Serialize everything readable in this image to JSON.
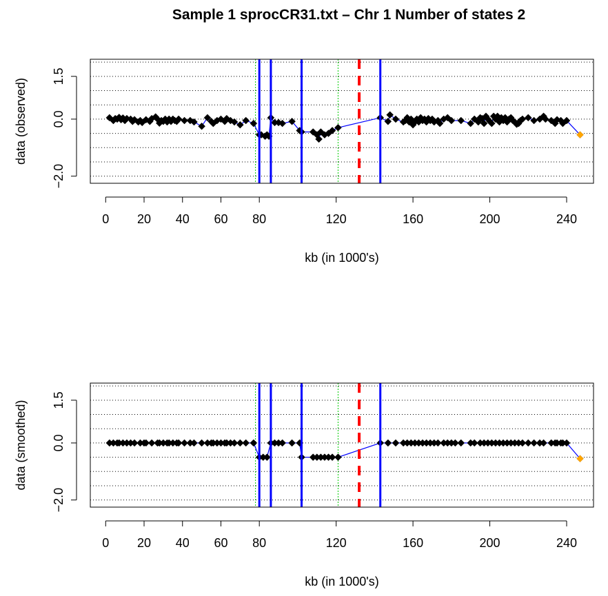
{
  "title": "Sample 1 sprocCR31.txt – Chr 1 Number of states 2",
  "colors": {
    "points": "#000000",
    "line": "#0000ff",
    "breaks": "#0000ff",
    "red_dashed": "#ff0000",
    "green_dotted": "#00cc00",
    "last_point": "#ffa500",
    "grid": "#000000"
  },
  "chart_data": [
    {
      "type": "line",
      "xlabel": "kb (in 1000's)",
      "ylabel": "data (observed)",
      "xlim": [
        -8,
        254
      ],
      "ylim": [
        -2.25,
        2.1
      ],
      "xticks": [
        0,
        20,
        40,
        60,
        80,
        120,
        160,
        200,
        240
      ],
      "yticks": [
        -2.0,
        0.0,
        1.5
      ],
      "ytick_labels": [
        "−2.0",
        "0.0",
        "1.5"
      ],
      "grid_y": [
        -2.0,
        -1.5,
        -1.0,
        -0.5,
        0.0,
        0.5,
        1.0,
        1.5,
        2.0
      ],
      "blue_vlines": [
        80,
        86,
        102,
        143
      ],
      "green_vlines": [
        78,
        121
      ],
      "red_vline": 132,
      "points": [
        [
          2,
          0.05
        ],
        [
          4,
          -0.05
        ],
        [
          5,
          0.02
        ],
        [
          6,
          0.0
        ],
        [
          7,
          0.06
        ],
        [
          8,
          -0.02
        ],
        [
          9,
          0.04
        ],
        [
          10,
          -0.05
        ],
        [
          11,
          0.02
        ],
        [
          13,
          0.0
        ],
        [
          14,
          -0.08
        ],
        [
          15,
          -0.02
        ],
        [
          17,
          -0.1
        ],
        [
          18,
          -0.05
        ],
        [
          19,
          -0.12
        ],
        [
          21,
          -0.02
        ],
        [
          23,
          -0.08
        ],
        [
          24,
          0.02
        ],
        [
          26,
          0.08
        ],
        [
          27,
          0.0
        ],
        [
          28,
          -0.14
        ],
        [
          29,
          -0.05
        ],
        [
          30,
          -0.08
        ],
        [
          31,
          0.0
        ],
        [
          32,
          -0.1
        ],
        [
          33,
          0.0
        ],
        [
          34,
          -0.08
        ],
        [
          35,
          0.0
        ],
        [
          36,
          -0.05
        ],
        [
          37,
          -0.08
        ],
        [
          38,
          0.0
        ],
        [
          41,
          -0.05
        ],
        [
          44,
          -0.05
        ],
        [
          46,
          -0.1
        ],
        [
          50,
          -0.25
        ],
        [
          53,
          0.05
        ],
        [
          55,
          -0.08
        ],
        [
          56,
          -0.15
        ],
        [
          58,
          -0.05
        ],
        [
          60,
          0.0
        ],
        [
          62,
          -0.08
        ],
        [
          63,
          0.02
        ],
        [
          65,
          -0.05
        ],
        [
          67,
          -0.1
        ],
        [
          70,
          -0.2
        ],
        [
          73,
          -0.05
        ],
        [
          77,
          -0.15
        ],
        [
          80,
          -0.55
        ],
        [
          81,
          -0.55
        ],
        [
          83,
          -0.6
        ],
        [
          84,
          -0.55
        ],
        [
          85,
          -0.6
        ],
        [
          86,
          0.05
        ],
        [
          88,
          -0.12
        ],
        [
          90,
          -0.12
        ],
        [
          92,
          -0.15
        ],
        [
          97,
          -0.08
        ],
        [
          101,
          -0.4
        ],
        [
          102,
          -0.45
        ],
        [
          108,
          -0.45
        ],
        [
          110,
          -0.55
        ],
        [
          111,
          -0.7
        ],
        [
          112,
          -0.45
        ],
        [
          114,
          -0.55
        ],
        [
          116,
          -0.5
        ],
        [
          118,
          -0.4
        ],
        [
          121,
          -0.3
        ],
        [
          143,
          0.05
        ],
        [
          147,
          -0.08
        ],
        [
          148,
          0.15
        ],
        [
          151,
          0.0
        ],
        [
          155,
          -0.1
        ],
        [
          156,
          -0.05
        ],
        [
          157,
          0.05
        ],
        [
          158,
          -0.1
        ],
        [
          159,
          0.0
        ],
        [
          160,
          -0.2
        ],
        [
          161,
          -0.1
        ],
        [
          162,
          0.0
        ],
        [
          163,
          -0.1
        ],
        [
          164,
          0.05
        ],
        [
          165,
          -0.05
        ],
        [
          166,
          0.0
        ],
        [
          167,
          -0.1
        ],
        [
          168,
          0.02
        ],
        [
          169,
          -0.05
        ],
        [
          170,
          0.0
        ],
        [
          171,
          -0.1
        ],
        [
          173,
          -0.05
        ],
        [
          174,
          -0.15
        ],
        [
          176,
          0.0
        ],
        [
          178,
          0.05
        ],
        [
          180,
          -0.05
        ],
        [
          185,
          -0.05
        ],
        [
          190,
          -0.15
        ],
        [
          192,
          0.0
        ],
        [
          194,
          -0.1
        ],
        [
          195,
          0.05
        ],
        [
          196,
          0.02
        ],
        [
          197,
          -0.15
        ],
        [
          198,
          0.1
        ],
        [
          199,
          0.0
        ],
        [
          200,
          -0.08
        ],
        [
          201,
          -0.15
        ],
        [
          202,
          0.1
        ],
        [
          203,
          0.0
        ],
        [
          204,
          0.1
        ],
        [
          205,
          -0.1
        ],
        [
          206,
          0.05
        ],
        [
          207,
          -0.05
        ],
        [
          208,
          0.05
        ],
        [
          209,
          -0.1
        ],
        [
          210,
          0.0
        ],
        [
          211,
          0.05
        ],
        [
          212,
          -0.05
        ],
        [
          213,
          -0.1
        ],
        [
          214,
          -0.18
        ],
        [
          215,
          -0.15
        ],
        [
          216,
          -0.05
        ],
        [
          217,
          0.0
        ],
        [
          220,
          0.05
        ],
        [
          223,
          -0.05
        ],
        [
          226,
          0.0
        ],
        [
          228,
          0.1
        ],
        [
          229,
          0.0
        ],
        [
          232,
          -0.05
        ],
        [
          234,
          -0.15
        ],
        [
          235,
          -0.02
        ],
        [
          237,
          -0.05
        ],
        [
          238,
          -0.15
        ],
        [
          240,
          -0.05
        ],
        [
          247,
          -0.55
        ]
      ]
    },
    {
      "type": "line",
      "xlabel": "kb (in 1000's)",
      "ylabel": "data (smoothed)",
      "xlim": [
        -8,
        254
      ],
      "ylim": [
        -2.25,
        2.1
      ],
      "xticks": [
        0,
        20,
        40,
        60,
        80,
        120,
        160,
        200,
        240
      ],
      "yticks": [
        -2.0,
        0.0,
        1.5
      ],
      "ytick_labels": [
        "−2.0",
        "0.0",
        "1.5"
      ],
      "grid_y": [
        -2.0,
        -1.5,
        -1.0,
        -0.5,
        0.0,
        0.5,
        1.0,
        1.5,
        2.0
      ],
      "blue_vlines": [
        80,
        86,
        102,
        143
      ],
      "green_vlines": [
        78,
        121
      ],
      "red_vline": 132,
      "points": [
        [
          2,
          0
        ],
        [
          4,
          0
        ],
        [
          6,
          0
        ],
        [
          7,
          0
        ],
        [
          9,
          0
        ],
        [
          11,
          0
        ],
        [
          13,
          0
        ],
        [
          15,
          0
        ],
        [
          18,
          0
        ],
        [
          20,
          0
        ],
        [
          21,
          0
        ],
        [
          24,
          0
        ],
        [
          27,
          0
        ],
        [
          28,
          0
        ],
        [
          30,
          0
        ],
        [
          32,
          0
        ],
        [
          33,
          0
        ],
        [
          35,
          0
        ],
        [
          37,
          0
        ],
        [
          38,
          0
        ],
        [
          41,
          0
        ],
        [
          44,
          0
        ],
        [
          46,
          0
        ],
        [
          50,
          0
        ],
        [
          53,
          0
        ],
        [
          55,
          0
        ],
        [
          56,
          0
        ],
        [
          58,
          0
        ],
        [
          60,
          0
        ],
        [
          62,
          0
        ],
        [
          63,
          0
        ],
        [
          65,
          0
        ],
        [
          67,
          0
        ],
        [
          70,
          0
        ],
        [
          73,
          0
        ],
        [
          77,
          0
        ],
        [
          80,
          -0.5
        ],
        [
          82,
          -0.5
        ],
        [
          84,
          -0.5
        ],
        [
          86,
          0
        ],
        [
          88,
          0
        ],
        [
          90,
          0
        ],
        [
          92,
          0
        ],
        [
          97,
          0
        ],
        [
          101,
          0
        ],
        [
          102,
          -0.5
        ],
        [
          108,
          -0.5
        ],
        [
          110,
          -0.5
        ],
        [
          112,
          -0.5
        ],
        [
          114,
          -0.5
        ],
        [
          116,
          -0.5
        ],
        [
          118,
          -0.5
        ],
        [
          121,
          -0.5
        ],
        [
          143,
          0
        ],
        [
          147,
          0
        ],
        [
          151,
          0
        ],
        [
          155,
          0
        ],
        [
          157,
          0
        ],
        [
          159,
          0
        ],
        [
          161,
          0
        ],
        [
          163,
          0
        ],
        [
          165,
          0
        ],
        [
          167,
          0
        ],
        [
          169,
          0
        ],
        [
          171,
          0
        ],
        [
          173,
          0
        ],
        [
          176,
          0
        ],
        [
          178,
          0
        ],
        [
          180,
          0
        ],
        [
          182,
          0
        ],
        [
          185,
          0
        ],
        [
          190,
          0
        ],
        [
          192,
          0
        ],
        [
          195,
          0
        ],
        [
          197,
          0
        ],
        [
          199,
          0
        ],
        [
          201,
          0
        ],
        [
          203,
          0
        ],
        [
          205,
          0
        ],
        [
          207,
          0
        ],
        [
          209,
          0
        ],
        [
          211,
          0
        ],
        [
          213,
          0
        ],
        [
          215,
          0
        ],
        [
          217,
          0
        ],
        [
          220,
          0
        ],
        [
          223,
          0
        ],
        [
          226,
          0
        ],
        [
          228,
          0
        ],
        [
          232,
          0
        ],
        [
          234,
          0
        ],
        [
          235,
          0
        ],
        [
          237,
          0
        ],
        [
          238,
          0
        ],
        [
          240,
          0
        ],
        [
          247,
          -0.55
        ]
      ]
    }
  ]
}
